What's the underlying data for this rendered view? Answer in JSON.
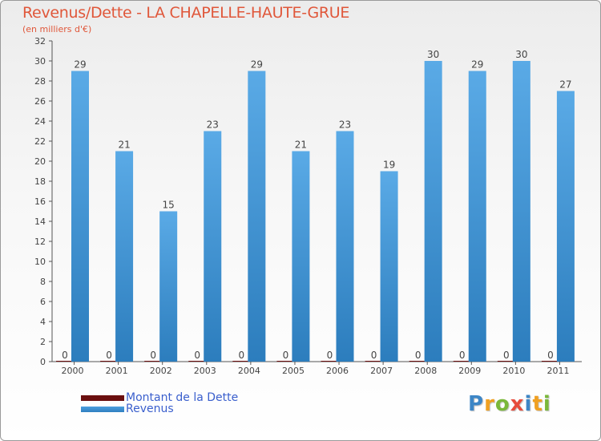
{
  "chart_data": {
    "type": "bar",
    "title": "Revenus/Dette - LA CHAPELLE-HAUTE-GRUE",
    "subtitle": "(en milliers d'€)",
    "xlabel": "",
    "ylabel": "",
    "ylim": [
      0,
      32
    ],
    "ytick_step": 2,
    "grid": false,
    "categories": [
      "2000",
      "2001",
      "2002",
      "2003",
      "2004",
      "2005",
      "2006",
      "2007",
      "2008",
      "2009",
      "2010",
      "2011"
    ],
    "series": [
      {
        "name": "Montant de la Dette",
        "color": "#6b0f0f",
        "values": [
          0,
          0,
          0,
          0,
          0,
          0,
          0,
          0,
          0,
          0,
          0,
          0
        ]
      },
      {
        "name": "Revenus",
        "color": "#4d9fdf",
        "values": [
          29,
          21,
          15,
          23,
          29,
          21,
          23,
          19,
          30,
          29,
          30,
          27
        ]
      }
    ]
  },
  "legend": {
    "position": "bottom-left",
    "items": [
      {
        "label": "Montant de la Dette",
        "color": "#6b0f0f"
      },
      {
        "label": "Revenus",
        "color": "#4d9fdf"
      }
    ]
  },
  "brand": {
    "letters": [
      "P",
      "r",
      "o",
      "x",
      "i",
      "t",
      "i"
    ],
    "colors": [
      "#3d86c6",
      "#f0a020",
      "#7ab83a",
      "#e74c3c",
      "#3d86c6",
      "#f0a020",
      "#7ab83a"
    ]
  }
}
